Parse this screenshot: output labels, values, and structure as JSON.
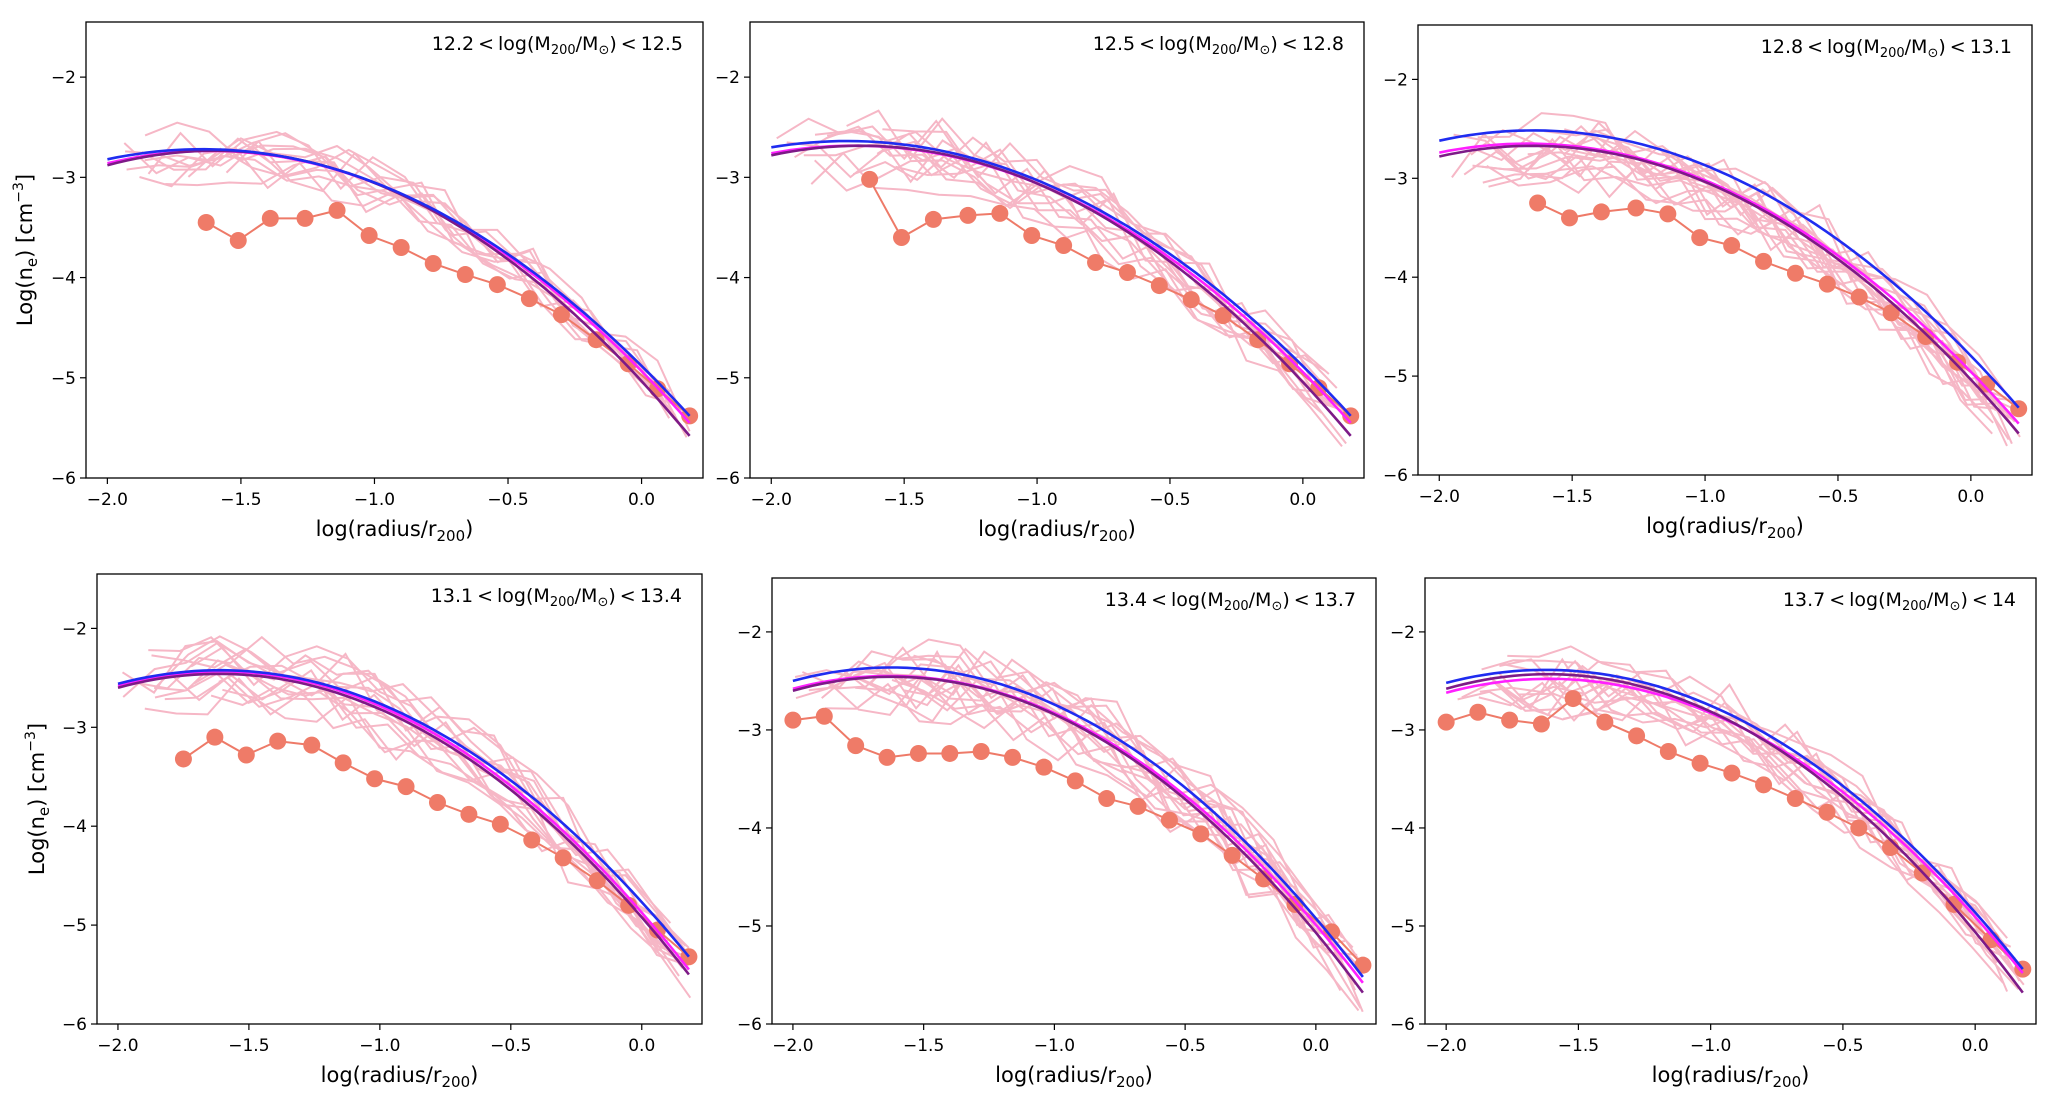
{
  "figure": {
    "ylabel_main": "Log(n",
    "ylabel_sub": "e",
    "ylabel_unit": ") [cm",
    "ylabel_sup": "−3",
    "ylabel_close": "]",
    "xlabel_main": "log(radius/r",
    "xlabel_sub": "200",
    "xlabel_close": ")",
    "title_prefix": "log(M",
    "title_sub": "200",
    "title_mid": "/M",
    "title_sun": "⊙",
    "title_close": ")",
    "lt": "<"
  },
  "chart_data": [
    {
      "type": "line",
      "panel": "12.2-12.5",
      "title_low": "12.2",
      "title_high": "12.5",
      "xlim": [
        -2.08,
        0.23
      ],
      "ylim": [
        -6,
        -1.45
      ],
      "xticks": [
        -2.0,
        -1.5,
        -1.0,
        -0.5,
        0.0
      ],
      "xtick_labels": [
        "−2.0",
        "−1.5",
        "−1.0",
        "−0.5",
        "0.0"
      ],
      "yticks": [
        -6,
        -5,
        -4,
        -3,
        -2
      ],
      "ytick_labels": [
        "−6",
        "−5",
        "−4",
        "−3",
        "−2"
      ],
      "median": {
        "x": [
          -1.63,
          -1.51,
          -1.39,
          -1.26,
          -1.14,
          -1.02,
          -0.9,
          -0.78,
          -0.66,
          -0.54,
          -0.42,
          -0.3,
          -0.17,
          -0.05,
          0.06,
          0.18
        ],
        "y": [
          -3.45,
          -3.63,
          -3.41,
          -3.41,
          -3.33,
          -3.58,
          -3.7,
          -3.86,
          -3.97,
          -4.07,
          -4.21,
          -4.37,
          -4.62,
          -4.86,
          -5.11,
          -5.38
        ]
      },
      "fits": [
        {
          "name": "magenta",
          "color": "#ff1fff",
          "x0": -2.0,
          "x1": 0.18,
          "y0": -2.86,
          "yk": -3.88,
          "y1": -5.45
        },
        {
          "name": "purple",
          "color": "#7d1a87",
          "x0": -2.0,
          "x1": 0.18,
          "y0": -2.88,
          "yk": -3.92,
          "y1": -5.58
        },
        {
          "name": "blue",
          "color": "#1f2cf0",
          "x0": -2.0,
          "x1": 0.18,
          "y0": -2.82,
          "yk": -3.86,
          "y1": -5.38
        }
      ],
      "lines_spread": 0.3,
      "lines_count": 12,
      "seed": 11
    },
    {
      "type": "line",
      "panel": "12.5-12.8",
      "title_low": "12.5",
      "title_high": "12.8",
      "xlim": [
        -2.08,
        0.23
      ],
      "ylim": [
        -6,
        -1.45
      ],
      "xticks": [
        -2.0,
        -1.5,
        -1.0,
        -0.5,
        0.0
      ],
      "xtick_labels": [
        "−2.0",
        "−1.5",
        "−1.0",
        "−0.5",
        "0.0"
      ],
      "yticks": [
        -6,
        -5,
        -4,
        -3,
        -2
      ],
      "ytick_labels": [
        "−6",
        "−5",
        "−4",
        "−3",
        "−2"
      ],
      "median": {
        "x": [
          -1.63,
          -1.51,
          -1.39,
          -1.26,
          -1.14,
          -1.02,
          -0.9,
          -0.78,
          -0.66,
          -0.54,
          -0.42,
          -0.3,
          -0.17,
          -0.05,
          0.06,
          0.18
        ],
        "y": [
          -3.02,
          -3.6,
          -3.42,
          -3.38,
          -3.36,
          -3.58,
          -3.68,
          -3.85,
          -3.95,
          -4.08,
          -4.22,
          -4.38,
          -4.62,
          -4.86,
          -5.1,
          -5.38
        ]
      },
      "fits": [
        {
          "name": "magenta",
          "color": "#ff1fff",
          "x0": -2.0,
          "x1": 0.18,
          "y0": -2.76,
          "yk": -3.9,
          "y1": -5.45
        },
        {
          "name": "purple",
          "color": "#7d1a87",
          "x0": -2.0,
          "x1": 0.18,
          "y0": -2.78,
          "yk": -3.94,
          "y1": -5.58
        },
        {
          "name": "blue",
          "color": "#1f2cf0",
          "x0": -2.0,
          "x1": 0.18,
          "y0": -2.7,
          "yk": -3.86,
          "y1": -5.38
        }
      ],
      "lines_spread": 0.32,
      "lines_count": 14,
      "seed": 23
    },
    {
      "type": "line",
      "panel": "12.8-13.1",
      "title_low": "12.8",
      "title_high": "13.1",
      "xlim": [
        -2.08,
        0.23
      ],
      "ylim": [
        -6,
        -1.45
      ],
      "xticks": [
        -2.0,
        -1.5,
        -1.0,
        -0.5,
        0.0
      ],
      "xtick_labels": [
        "−2.0",
        "−1.5",
        "−1.0",
        "−0.5",
        "0.0"
      ],
      "yticks": [
        -6,
        -5,
        -4,
        -3,
        -2
      ],
      "ytick_labels": [
        "−6",
        "−5",
        "−4",
        "−3",
        "−2"
      ],
      "median": {
        "x": [
          -1.63,
          -1.51,
          -1.39,
          -1.26,
          -1.14,
          -1.02,
          -0.9,
          -0.78,
          -0.66,
          -0.54,
          -0.42,
          -0.3,
          -0.17,
          -0.05,
          0.06,
          0.18
        ],
        "y": [
          -3.25,
          -3.4,
          -3.34,
          -3.3,
          -3.36,
          -3.6,
          -3.68,
          -3.84,
          -3.96,
          -4.07,
          -4.2,
          -4.36,
          -4.6,
          -4.86,
          -5.08,
          -5.33
        ]
      },
      "fits": [
        {
          "name": "magenta",
          "color": "#ff1fff",
          "x0": -2.0,
          "x1": 0.18,
          "y0": -2.74,
          "yk": -3.88,
          "y1": -5.48
        },
        {
          "name": "purple",
          "color": "#7d1a87",
          "x0": -2.0,
          "x1": 0.18,
          "y0": -2.78,
          "yk": -3.92,
          "y1": -5.58
        },
        {
          "name": "blue",
          "color": "#1f2cf0",
          "x0": -2.0,
          "x1": 0.18,
          "y0": -2.62,
          "yk": -3.72,
          "y1": -5.32
        }
      ],
      "lines_spread": 0.35,
      "lines_count": 18,
      "seed": 37
    },
    {
      "type": "line",
      "panel": "13.1-13.4",
      "title_low": "13.1",
      "title_high": "13.4",
      "xlim": [
        -2.08,
        0.23
      ],
      "ylim": [
        -6,
        -1.45
      ],
      "xticks": [
        -2.0,
        -1.5,
        -1.0,
        -0.5,
        0.0
      ],
      "xtick_labels": [
        "−2.0",
        "−1.5",
        "−1.0",
        "−0.5",
        "0.0"
      ],
      "yticks": [
        -6,
        -5,
        -4,
        -3,
        -2
      ],
      "ytick_labels": [
        "−6",
        "−5",
        "−4",
        "−3",
        "−2"
      ],
      "median": {
        "x": [
          -1.75,
          -1.63,
          -1.51,
          -1.39,
          -1.26,
          -1.14,
          -1.02,
          -0.9,
          -0.78,
          -0.66,
          -0.54,
          -0.42,
          -0.3,
          -0.17,
          -0.05,
          0.06,
          0.18
        ],
        "y": [
          -3.32,
          -3.1,
          -3.28,
          -3.14,
          -3.18,
          -3.36,
          -3.52,
          -3.6,
          -3.76,
          -3.88,
          -3.98,
          -4.14,
          -4.32,
          -4.55,
          -4.8,
          -5.05,
          -5.32
        ]
      },
      "fits": [
        {
          "name": "magenta",
          "color": "#ff1fff",
          "x0": -2.0,
          "x1": 0.18,
          "y0": -2.58,
          "yk": -3.7,
          "y1": -5.45
        },
        {
          "name": "purple",
          "color": "#7d1a87",
          "x0": -2.0,
          "x1": 0.18,
          "y0": -2.6,
          "yk": -3.74,
          "y1": -5.5
        },
        {
          "name": "blue",
          "color": "#1f2cf0",
          "x0": -2.0,
          "x1": 0.18,
          "y0": -2.56,
          "yk": -3.64,
          "y1": -5.32
        }
      ],
      "lines_spread": 0.32,
      "lines_count": 16,
      "seed": 51
    },
    {
      "type": "line",
      "panel": "13.4-13.7",
      "title_low": "13.4",
      "title_high": "13.7",
      "xlim": [
        -2.08,
        0.23
      ],
      "ylim": [
        -6,
        -1.45
      ],
      "xticks": [
        -2.0,
        -1.5,
        -1.0,
        -0.5,
        0.0
      ],
      "xtick_labels": [
        "−2.0",
        "−1.5",
        "−1.0",
        "−0.5",
        "0.0"
      ],
      "yticks": [
        -6,
        -5,
        -4,
        -3,
        -2
      ],
      "ytick_labels": [
        "−6",
        "−5",
        "−4",
        "−3",
        "−2"
      ],
      "median": {
        "x": [
          -2.0,
          -1.88,
          -1.76,
          -1.64,
          -1.52,
          -1.4,
          -1.28,
          -1.16,
          -1.04,
          -0.92,
          -0.8,
          -0.68,
          -0.56,
          -0.44,
          -0.32,
          -0.2,
          -0.08,
          0.06,
          0.18
        ],
        "y": [
          -2.9,
          -2.86,
          -3.16,
          -3.28,
          -3.24,
          -3.24,
          -3.22,
          -3.28,
          -3.38,
          -3.52,
          -3.7,
          -3.78,
          -3.92,
          -4.06,
          -4.28,
          -4.52,
          -4.78,
          -5.06,
          -5.4
        ]
      },
      "fits": [
        {
          "name": "magenta",
          "color": "#ff1fff",
          "x0": -2.0,
          "x1": 0.18,
          "y0": -2.58,
          "yk": -3.78,
          "y1": -5.58
        },
        {
          "name": "purple",
          "color": "#7d1a87",
          "x0": -2.0,
          "x1": 0.18,
          "y0": -2.6,
          "yk": -3.82,
          "y1": -5.68
        },
        {
          "name": "blue",
          "color": "#1f2cf0",
          "x0": -2.0,
          "x1": 0.18,
          "y0": -2.5,
          "yk": -3.7,
          "y1": -5.52
        }
      ],
      "lines_spread": 0.38,
      "lines_count": 18,
      "seed": 67
    },
    {
      "type": "line",
      "panel": "13.7-14",
      "title_low": "13.7",
      "title_high": "14",
      "xlim": [
        -2.08,
        0.23
      ],
      "ylim": [
        -6,
        -1.45
      ],
      "xticks": [
        -2.0,
        -1.5,
        -1.0,
        -0.5,
        0.0
      ],
      "xtick_labels": [
        "−2.0",
        "−1.5",
        "−1.0",
        "−0.5",
        "0.0"
      ],
      "yticks": [
        -6,
        -5,
        -4,
        -3,
        -2
      ],
      "ytick_labels": [
        "−6",
        "−5",
        "−4",
        "−3",
        "−2"
      ],
      "median": {
        "x": [
          -2.0,
          -1.88,
          -1.76,
          -1.64,
          -1.52,
          -1.4,
          -1.28,
          -1.16,
          -1.04,
          -0.92,
          -0.8,
          -0.68,
          -0.56,
          -0.44,
          -0.32,
          -0.2,
          -0.08,
          0.06,
          0.18
        ],
        "y": [
          -2.92,
          -2.82,
          -2.9,
          -2.94,
          -2.68,
          -2.92,
          -3.06,
          -3.22,
          -3.34,
          -3.44,
          -3.56,
          -3.7,
          -3.84,
          -4.0,
          -4.2,
          -4.46,
          -4.78,
          -5.14,
          -5.44
        ]
      },
      "fits": [
        {
          "name": "magenta",
          "color": "#ff1fff",
          "x0": -2.0,
          "x1": 0.18,
          "y0": -2.62,
          "yk": -3.74,
          "y1": -5.48
        },
        {
          "name": "purple",
          "color": "#7d1a87",
          "x0": -2.0,
          "x1": 0.18,
          "y0": -2.58,
          "yk": -3.8,
          "y1": -5.68
        },
        {
          "name": "blue",
          "color": "#1f2cf0",
          "x0": -2.0,
          "x1": 0.18,
          "y0": -2.52,
          "yk": -3.68,
          "y1": -5.44
        }
      ],
      "lines_spread": 0.34,
      "lines_count": 16,
      "seed": 83
    }
  ]
}
